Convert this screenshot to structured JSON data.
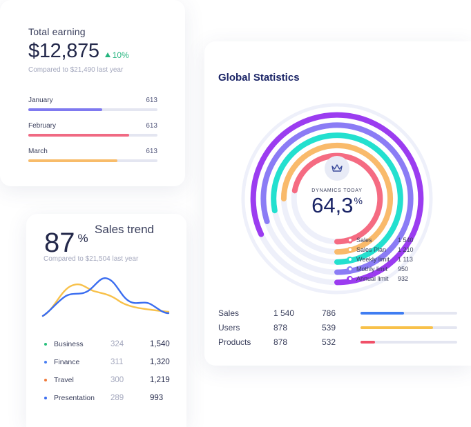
{
  "earning": {
    "title": "Total earning",
    "value": "$12,875",
    "change": "10%",
    "compare": "Compared to $21,490 last year",
    "months": [
      {
        "label": "January",
        "value": "613",
        "progress": 0.57,
        "color": "#7f79f0"
      },
      {
        "label": "February",
        "value": "613",
        "progress": 0.78,
        "color": "#f06a83"
      },
      {
        "label": "March",
        "value": "613",
        "progress": 0.69,
        "color": "#f8bc6a"
      }
    ]
  },
  "trend": {
    "value": "87",
    "unit": "%",
    "title": "Sales trend",
    "compare": "Compared to $21,504 last year",
    "colors": {
      "blue": "#3a6df0",
      "yellow": "#f8c14a"
    },
    "legend": [
      {
        "name": "Business",
        "mid": "324",
        "value": "1,540",
        "color": "#27c07d"
      },
      {
        "name": "Finance",
        "mid": "311",
        "value": "1,320",
        "color": "#4a7ff2"
      },
      {
        "name": "Travel",
        "mid": "300",
        "value": "1,219",
        "color": "#f07a3a"
      },
      {
        "name": "Presentation",
        "mid": "289",
        "value": "993",
        "color": "#3a6df0"
      }
    ]
  },
  "global": {
    "title": "Global Statistics",
    "dynamics_label": "DYNAMICS TODAY",
    "dynamics_value": "64,3",
    "dynamics_unit": "%",
    "rings": [
      {
        "name": "Sales",
        "value": "1 540",
        "color": "#f56b82",
        "fraction": 0.72
      },
      {
        "name": "Sales Plan",
        "value": "1 210",
        "color": "#f9ba6b",
        "fraction": 0.75
      },
      {
        "name": "Weekly limit",
        "value": "1 113",
        "color": "#23e0cf",
        "fraction": 0.78
      },
      {
        "name": "Mothly limit",
        "value": "950",
        "color": "#8b7cf5",
        "fraction": 0.8
      },
      {
        "name": "Annual limit",
        "value": "932",
        "color": "#9b3cf0",
        "fraction": 0.82
      }
    ],
    "table": [
      {
        "name": "Sales",
        "v1": "1 540",
        "v2": "786",
        "progress": 0.45,
        "color": "#3f7df2"
      },
      {
        "name": "Users",
        "v1": "878",
        "v2": "539",
        "progress": 0.75,
        "color": "#f8c14a"
      },
      {
        "name": "Products",
        "v1": "878",
        "v2": "532",
        "progress": 0.15,
        "color": "#f05068"
      }
    ]
  }
}
